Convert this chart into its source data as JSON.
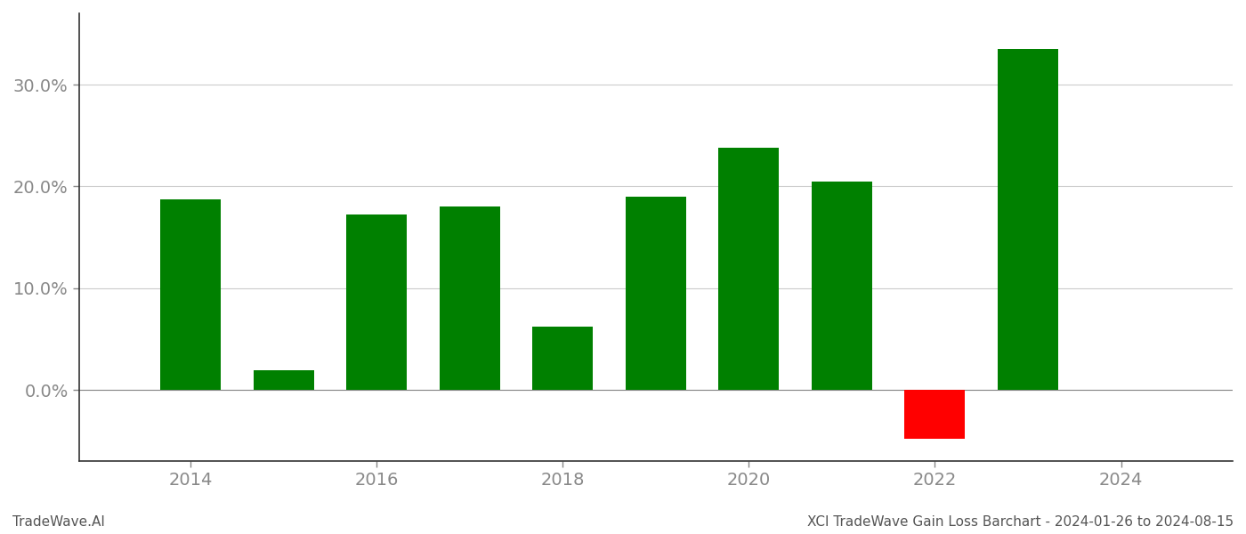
{
  "years": [
    2014,
    2015,
    2016,
    2017,
    2018,
    2019,
    2020,
    2021,
    2022,
    2023
  ],
  "values": [
    0.187,
    0.019,
    0.172,
    0.18,
    0.062,
    0.19,
    0.238,
    0.205,
    -0.048,
    0.335
  ],
  "bar_colors": [
    "#008000",
    "#008000",
    "#008000",
    "#008000",
    "#008000",
    "#008000",
    "#008000",
    "#008000",
    "#ff0000",
    "#008000"
  ],
  "ylim": [
    -0.07,
    0.37
  ],
  "yticks": [
    0.0,
    0.1,
    0.2,
    0.3
  ],
  "xticks": [
    2014,
    2016,
    2018,
    2020,
    2022,
    2024
  ],
  "xlim": [
    2012.8,
    2025.2
  ],
  "footer_left": "TradeWave.AI",
  "footer_right": "XCI TradeWave Gain Loss Barchart - 2024-01-26 to 2024-08-15",
  "background_color": "#ffffff",
  "bar_width": 0.65,
  "grid_color": "#cccccc",
  "tick_label_color": "#888888",
  "footer_fontsize": 11,
  "tick_fontsize": 14
}
